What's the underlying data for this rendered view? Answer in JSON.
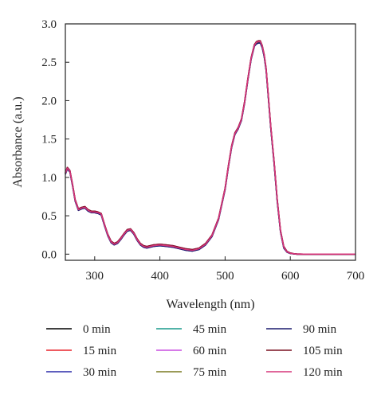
{
  "chart_data": {
    "type": "line",
    "xlabel": "Wavelength (nm)",
    "ylabel": "Absorbance (a.u.)",
    "xlim": [
      255,
      700
    ],
    "ylim": [
      -0.08,
      3.0
    ],
    "xticks": [
      300,
      400,
      500,
      600,
      700
    ],
    "yticks": [
      0.0,
      0.5,
      1.0,
      1.5,
      2.0,
      2.5,
      3.0
    ],
    "xtick_labels": [
      "300",
      "400",
      "500",
      "600",
      "700"
    ],
    "ytick_labels": [
      "0.0",
      "0.5",
      "1.0",
      "1.5",
      "2.0",
      "2.5",
      "3.0"
    ],
    "grid": false,
    "legend_position": "bottom",
    "x": [
      255,
      258,
      262,
      266,
      270,
      275,
      280,
      285,
      290,
      295,
      300,
      305,
      310,
      315,
      320,
      325,
      330,
      335,
      340,
      345,
      350,
      355,
      360,
      365,
      370,
      375,
      380,
      390,
      400,
      410,
      420,
      430,
      440,
      450,
      460,
      470,
      480,
      490,
      500,
      505,
      510,
      515,
      520,
      525,
      530,
      535,
      540,
      545,
      548,
      551,
      554,
      557,
      560,
      563,
      566,
      570,
      575,
      580,
      585,
      590,
      595,
      600,
      605,
      610,
      620,
      640,
      660,
      680,
      700
    ],
    "series": [
      {
        "name": "0 min",
        "color": "#000000",
        "values": [
          1.05,
          1.12,
          1.08,
          0.9,
          0.7,
          0.58,
          0.6,
          0.61,
          0.57,
          0.55,
          0.55,
          0.54,
          0.52,
          0.38,
          0.25,
          0.16,
          0.13,
          0.15,
          0.2,
          0.26,
          0.31,
          0.32,
          0.27,
          0.19,
          0.13,
          0.1,
          0.09,
          0.11,
          0.12,
          0.11,
          0.1,
          0.08,
          0.06,
          0.05,
          0.07,
          0.13,
          0.24,
          0.46,
          0.85,
          1.14,
          1.4,
          1.57,
          1.64,
          1.75,
          1.98,
          2.28,
          2.55,
          2.72,
          2.75,
          2.76,
          2.76,
          2.7,
          2.58,
          2.4,
          2.08,
          1.65,
          1.2,
          0.7,
          0.3,
          0.09,
          0.03,
          0.01,
          0.005,
          0.0,
          0.0,
          0.0,
          0.0,
          0.0,
          0.0
        ]
      },
      {
        "name": "15 min",
        "color": "#e8242b",
        "values": [
          1.06,
          1.13,
          1.09,
          0.91,
          0.71,
          0.59,
          0.61,
          0.62,
          0.58,
          0.56,
          0.56,
          0.55,
          0.53,
          0.39,
          0.26,
          0.17,
          0.14,
          0.16,
          0.21,
          0.27,
          0.32,
          0.33,
          0.28,
          0.2,
          0.14,
          0.11,
          0.1,
          0.12,
          0.13,
          0.12,
          0.11,
          0.09,
          0.07,
          0.06,
          0.08,
          0.14,
          0.25,
          0.47,
          0.86,
          1.15,
          1.41,
          1.58,
          1.65,
          1.76,
          1.99,
          2.29,
          2.56,
          2.73,
          2.76,
          2.77,
          2.77,
          2.71,
          2.59,
          2.41,
          2.09,
          1.66,
          1.21,
          0.71,
          0.31,
          0.1,
          0.035,
          0.015,
          0.006,
          0.002,
          0.0,
          0.0,
          0.0,
          0.0,
          0.0
        ]
      },
      {
        "name": "30 min",
        "color": "#2a2aa8",
        "values": [
          1.04,
          1.11,
          1.07,
          0.89,
          0.69,
          0.57,
          0.59,
          0.6,
          0.56,
          0.54,
          0.54,
          0.53,
          0.51,
          0.37,
          0.24,
          0.15,
          0.12,
          0.14,
          0.19,
          0.25,
          0.3,
          0.31,
          0.26,
          0.18,
          0.12,
          0.09,
          0.08,
          0.1,
          0.11,
          0.1,
          0.09,
          0.07,
          0.05,
          0.04,
          0.06,
          0.12,
          0.23,
          0.45,
          0.84,
          1.13,
          1.39,
          1.56,
          1.63,
          1.74,
          1.97,
          2.27,
          2.54,
          2.71,
          2.74,
          2.75,
          2.75,
          2.69,
          2.57,
          2.39,
          2.07,
          1.64,
          1.19,
          0.69,
          0.29,
          0.08,
          0.025,
          0.008,
          0.003,
          0.0,
          0.0,
          0.0,
          0.0,
          0.0,
          0.0
        ]
      },
      {
        "name": "45 min",
        "color": "#1a9a8c",
        "values": [
          1.05,
          1.12,
          1.08,
          0.9,
          0.7,
          0.58,
          0.6,
          0.61,
          0.57,
          0.55,
          0.55,
          0.54,
          0.52,
          0.38,
          0.25,
          0.16,
          0.13,
          0.15,
          0.2,
          0.26,
          0.31,
          0.32,
          0.27,
          0.19,
          0.13,
          0.1,
          0.09,
          0.11,
          0.12,
          0.11,
          0.1,
          0.08,
          0.06,
          0.05,
          0.07,
          0.13,
          0.24,
          0.46,
          0.85,
          1.14,
          1.4,
          1.57,
          1.64,
          1.75,
          1.98,
          2.28,
          2.55,
          2.72,
          2.75,
          2.76,
          2.76,
          2.7,
          2.58,
          2.4,
          2.08,
          1.65,
          1.2,
          0.7,
          0.3,
          0.09,
          0.03,
          0.01,
          0.005,
          0.0,
          0.0,
          0.0,
          0.0,
          0.0,
          0.0
        ]
      },
      {
        "name": "60 min",
        "color": "#c94fe0",
        "values": [
          1.06,
          1.13,
          1.09,
          0.91,
          0.71,
          0.59,
          0.61,
          0.62,
          0.58,
          0.56,
          0.56,
          0.55,
          0.53,
          0.39,
          0.26,
          0.17,
          0.14,
          0.16,
          0.21,
          0.27,
          0.32,
          0.33,
          0.28,
          0.2,
          0.14,
          0.11,
          0.1,
          0.12,
          0.13,
          0.12,
          0.11,
          0.09,
          0.07,
          0.06,
          0.08,
          0.14,
          0.25,
          0.47,
          0.86,
          1.15,
          1.41,
          1.58,
          1.65,
          1.76,
          1.99,
          2.29,
          2.56,
          2.73,
          2.76,
          2.77,
          2.77,
          2.71,
          2.59,
          2.41,
          2.09,
          1.66,
          1.21,
          0.71,
          0.31,
          0.1,
          0.035,
          0.015,
          0.006,
          0.002,
          0.0,
          0.0,
          0.0,
          0.0,
          0.0
        ]
      },
      {
        "name": "75 min",
        "color": "#7a7a20",
        "values": [
          1.05,
          1.12,
          1.08,
          0.9,
          0.7,
          0.58,
          0.6,
          0.61,
          0.57,
          0.55,
          0.55,
          0.54,
          0.52,
          0.38,
          0.25,
          0.16,
          0.13,
          0.15,
          0.2,
          0.26,
          0.31,
          0.32,
          0.27,
          0.19,
          0.13,
          0.1,
          0.09,
          0.11,
          0.12,
          0.11,
          0.1,
          0.08,
          0.06,
          0.05,
          0.07,
          0.13,
          0.24,
          0.46,
          0.85,
          1.14,
          1.4,
          1.57,
          1.64,
          1.75,
          1.98,
          2.28,
          2.55,
          2.72,
          2.75,
          2.76,
          2.76,
          2.7,
          2.58,
          2.4,
          2.08,
          1.65,
          1.2,
          0.7,
          0.3,
          0.09,
          0.03,
          0.01,
          0.005,
          0.0,
          0.0,
          0.0,
          0.0,
          0.0,
          0.0
        ]
      },
      {
        "name": "90 min",
        "color": "#1c1c6e",
        "values": [
          1.04,
          1.11,
          1.07,
          0.89,
          0.69,
          0.57,
          0.59,
          0.6,
          0.56,
          0.54,
          0.54,
          0.53,
          0.51,
          0.37,
          0.24,
          0.15,
          0.12,
          0.14,
          0.19,
          0.25,
          0.3,
          0.31,
          0.26,
          0.18,
          0.12,
          0.09,
          0.08,
          0.1,
          0.11,
          0.1,
          0.09,
          0.07,
          0.05,
          0.04,
          0.06,
          0.12,
          0.23,
          0.45,
          0.84,
          1.13,
          1.39,
          1.56,
          1.63,
          1.74,
          1.97,
          2.27,
          2.54,
          2.71,
          2.74,
          2.75,
          2.75,
          2.69,
          2.57,
          2.39,
          2.07,
          1.64,
          1.19,
          0.69,
          0.29,
          0.08,
          0.025,
          0.008,
          0.003,
          0.0,
          0.0,
          0.0,
          0.0,
          0.0,
          0.0
        ]
      },
      {
        "name": "105 min",
        "color": "#7a1020",
        "values": [
          1.06,
          1.13,
          1.09,
          0.91,
          0.71,
          0.59,
          0.61,
          0.62,
          0.58,
          0.56,
          0.56,
          0.55,
          0.53,
          0.39,
          0.26,
          0.17,
          0.14,
          0.16,
          0.21,
          0.27,
          0.32,
          0.33,
          0.28,
          0.2,
          0.14,
          0.11,
          0.1,
          0.12,
          0.13,
          0.12,
          0.11,
          0.09,
          0.07,
          0.06,
          0.08,
          0.14,
          0.25,
          0.47,
          0.86,
          1.15,
          1.41,
          1.58,
          1.65,
          1.76,
          1.99,
          2.29,
          2.56,
          2.73,
          2.77,
          2.78,
          2.78,
          2.72,
          2.6,
          2.42,
          2.1,
          1.67,
          1.22,
          0.72,
          0.31,
          0.1,
          0.035,
          0.015,
          0.006,
          0.002,
          0.0,
          0.0,
          0.0,
          0.0,
          0.0
        ]
      },
      {
        "name": "120 min",
        "color": "#d6357a",
        "values": [
          1.05,
          1.12,
          1.08,
          0.9,
          0.7,
          0.58,
          0.6,
          0.61,
          0.57,
          0.55,
          0.55,
          0.54,
          0.52,
          0.38,
          0.25,
          0.16,
          0.13,
          0.15,
          0.2,
          0.26,
          0.31,
          0.32,
          0.27,
          0.19,
          0.13,
          0.1,
          0.09,
          0.11,
          0.12,
          0.11,
          0.1,
          0.08,
          0.06,
          0.05,
          0.07,
          0.13,
          0.24,
          0.46,
          0.85,
          1.14,
          1.4,
          1.57,
          1.64,
          1.75,
          1.98,
          2.28,
          2.55,
          2.72,
          2.76,
          2.77,
          2.77,
          2.71,
          2.59,
          2.41,
          2.09,
          1.66,
          1.21,
          0.71,
          0.3,
          0.09,
          0.03,
          0.01,
          0.005,
          0.0,
          0.0,
          0.0,
          0.0,
          0.0,
          0.0
        ]
      }
    ]
  }
}
